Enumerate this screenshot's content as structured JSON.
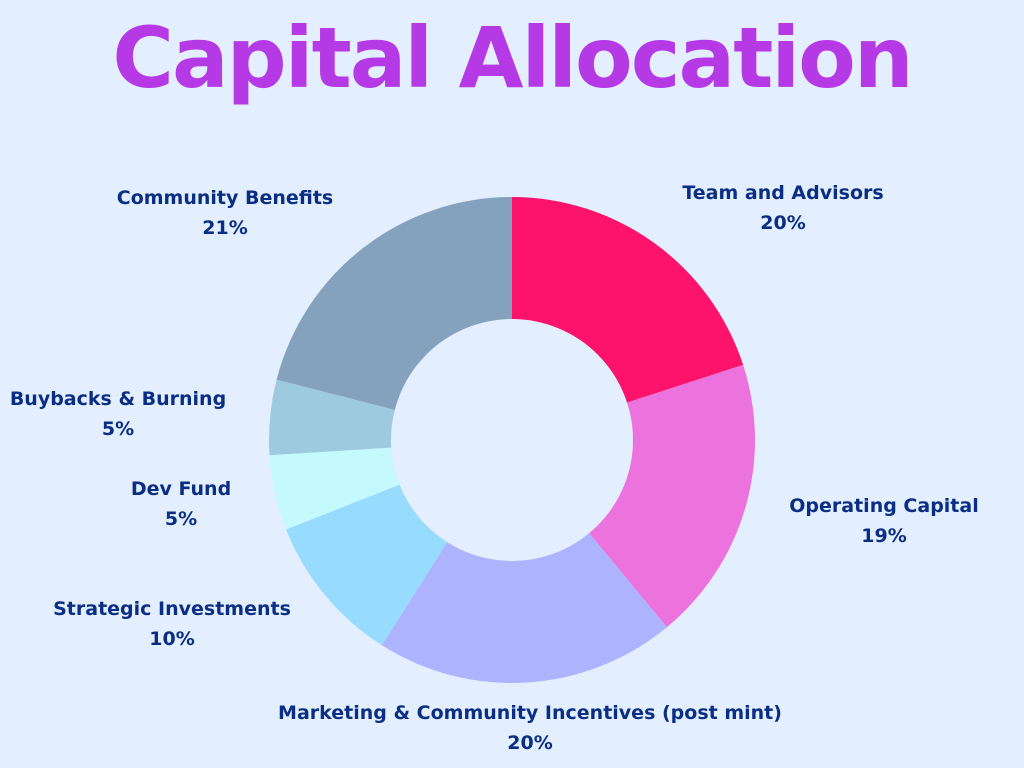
{
  "chart_data": {
    "type": "pie",
    "style": "donut",
    "title": "Capital Allocation",
    "start": "top",
    "direction": "clockwise",
    "slices": [
      {
        "name": "Team and Advisors",
        "value": 20,
        "value_label": "20%",
        "color": "#fe136c"
      },
      {
        "name": "Operating Capital",
        "value": 19,
        "value_label": "19%",
        "color": "#ec72de"
      },
      {
        "name": "Marketing & Community Incentives (post mint)",
        "value": 20,
        "value_label": "20%",
        "color": "#adb4fd"
      },
      {
        "name": "Strategic Investments",
        "value": 10,
        "value_label": "10%",
        "color": "#97dcfe"
      },
      {
        "name": "Dev Fund",
        "value": 5,
        "value_label": "5%",
        "color": "#c4f9fd"
      },
      {
        "name": "Buybacks & Burning",
        "value": 5,
        "value_label": "5%",
        "color": "#9ecae0"
      },
      {
        "name": "Community Benefits",
        "value": 21,
        "value_label": "21%",
        "color": "#84a2bd"
      }
    ],
    "colors": {
      "background": "#e3eefe",
      "title": "#b53ae6",
      "labels": "#0b2e85"
    }
  }
}
